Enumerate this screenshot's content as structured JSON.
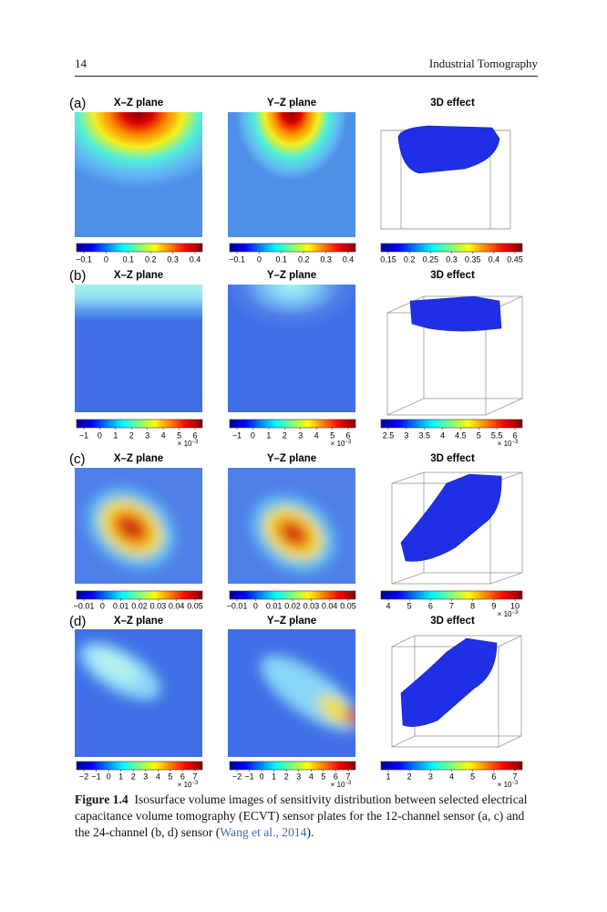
{
  "header": {
    "page_number": "14",
    "running_title": "Industrial Tomography"
  },
  "figure": {
    "panels": [
      {
        "label": "(a)",
        "views": [
          "X–Z plane",
          "Y–Z plane",
          "3D effect"
        ],
        "colorbars": [
          {
            "ticks": [
              "−0.1",
              "0",
              "0.1",
              "0.2",
              "0.3",
              "0.4"
            ]
          },
          {
            "ticks": [
              "−0.1",
              "0",
              "0.1",
              "0.2",
              "0.3",
              "0.4"
            ]
          },
          {
            "ticks": [
              "0.15",
              "0.2",
              "0.25",
              "0.3",
              "0.35",
              "0.4",
              "0.45"
            ]
          }
        ]
      },
      {
        "label": "(b)",
        "views": [
          "X–Z plane",
          "Y–Z plane",
          "3D effect"
        ],
        "colorbars": [
          {
            "ticks": [
              "−1",
              "0",
              "1",
              "2",
              "3",
              "4",
              "5",
              "6"
            ],
            "multiplier": "× 10",
            "exponent": "−3"
          },
          {
            "ticks": [
              "−1",
              "0",
              "1",
              "2",
              "3",
              "4",
              "5",
              "6"
            ],
            "multiplier": "× 10",
            "exponent": "−3"
          },
          {
            "ticks": [
              "2.5",
              "3",
              "3.5",
              "4",
              "4.5",
              "5",
              "5.5",
              "6"
            ],
            "multiplier": "× 10",
            "exponent": "−3"
          }
        ]
      },
      {
        "label": "(c)",
        "views": [
          "X–Z plane",
          "Y–Z plane",
          "3D effect"
        ],
        "colorbars": [
          {
            "ticks": [
              "−0.01",
              "0",
              "0.01",
              "0.02",
              "0.03",
              "0.04",
              "0.05"
            ]
          },
          {
            "ticks": [
              "−0.01",
              "0",
              "0.01",
              "0.02",
              "0.03",
              "0.04",
              "0.05"
            ]
          },
          {
            "ticks": [
              "4",
              "5",
              "6",
              "7",
              "8",
              "9",
              "10"
            ],
            "multiplier": "× 10",
            "exponent": "−3"
          }
        ]
      },
      {
        "label": "(d)",
        "views": [
          "X–Z plane",
          "Y–Z plane",
          "3D effect"
        ],
        "colorbars": [
          {
            "ticks": [
              "−2",
              "−1",
              "0",
              "1",
              "2",
              "3",
              "4",
              "5",
              "6",
              "7"
            ],
            "multiplier": "× 10",
            "exponent": "−3"
          },
          {
            "ticks": [
              "−2",
              "−1",
              "0",
              "1",
              "2",
              "3",
              "4",
              "5",
              "6",
              "7"
            ],
            "multiplier": "× 10",
            "exponent": "−3"
          },
          {
            "ticks": [
              "1",
              "2",
              "3",
              "4",
              "5",
              "6",
              "7"
            ],
            "multiplier": "× 10",
            "exponent": "−3"
          }
        ]
      }
    ]
  },
  "caption": {
    "label": "Figure 1.4",
    "text": "Isosurface volume images of sensitivity distribution between selected electrical capacitance volume tomography (ECVT) sensor plates for the 12-channel sensor (a, c) and the 24-channel (b, d) sensor (",
    "citation": "Wang et al., 2014",
    "end": ")."
  }
}
